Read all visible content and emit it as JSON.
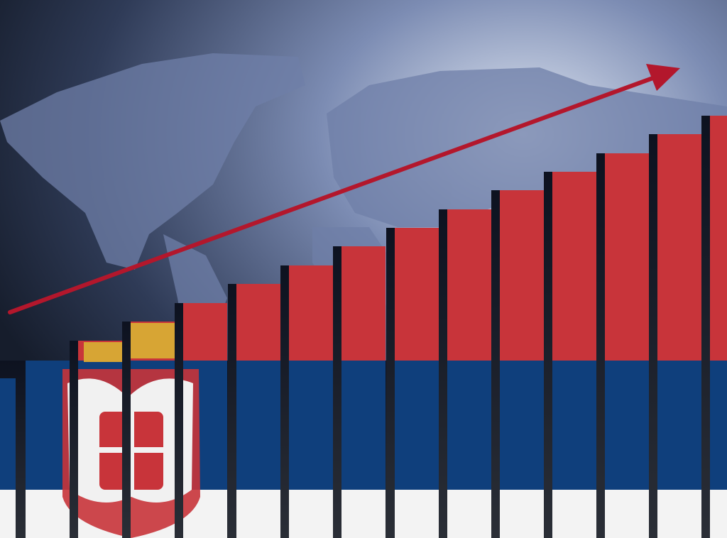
{
  "colors": {
    "flag_red": "#c8343a",
    "flag_blue": "#0f3f7c",
    "flag_white": "#f3f3f3",
    "arrow": "#b3172c",
    "background_dark": "#1b2436",
    "background_light": "#b9c4dc",
    "map_land": "#6f7fa8"
  },
  "icons": {
    "coat_of_arms": "serbian-coat-of-arms",
    "arrow": "trend-up-arrow"
  }
}
